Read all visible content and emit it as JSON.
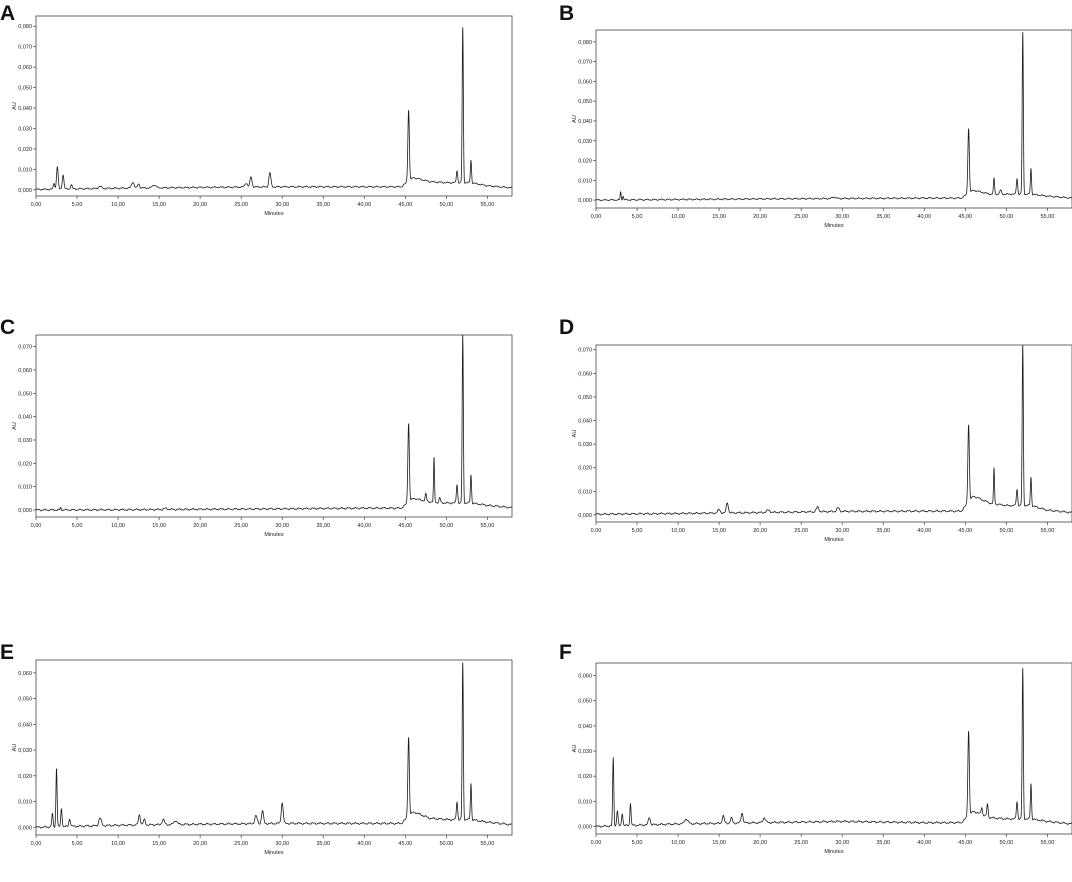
{
  "figure": {
    "colors": {
      "trace": "#1a1a1a",
      "axis": "#444444",
      "text": "#222222",
      "background": "#ffffff"
    }
  },
  "chart_data": [
    {
      "panel": "A",
      "type": "line",
      "xlabel": "Minutes",
      "ylabel": "AU",
      "xlim": [
        0,
        58
      ],
      "ylim": [
        -0.003,
        0.085
      ],
      "xticks": [
        "0,00",
        "5,00",
        "10,00",
        "15,00",
        "20,00",
        "25,00",
        "30,00",
        "35,00",
        "40,00",
        "45,00",
        "50,00",
        "55,00"
      ],
      "yticks": [
        "0,000",
        "0,010",
        "0,020",
        "0,030",
        "0,040",
        "0,050",
        "0,060",
        "0,070",
        "0,080"
      ],
      "grid": false,
      "baseline": [
        [
          0,
          0.0002
        ],
        [
          10,
          0.0008
        ],
        [
          20,
          0.0012
        ],
        [
          30,
          0.0015
        ],
        [
          40,
          0.0015
        ],
        [
          44.5,
          0.0015
        ],
        [
          46,
          0.006
        ],
        [
          48,
          0.004
        ],
        [
          50,
          0.0035
        ],
        [
          53,
          0.0035
        ],
        [
          55,
          0.002
        ],
        [
          58,
          0.001
        ]
      ],
      "peaks": [
        [
          2.6,
          0.011,
          0.1
        ],
        [
          3.3,
          0.007,
          0.1
        ],
        [
          2.2,
          0.003,
          0.08
        ],
        [
          4.3,
          0.002,
          0.1
        ],
        [
          7.8,
          0.001,
          0.2
        ],
        [
          11.8,
          0.003,
          0.15
        ],
        [
          12.5,
          0.002,
          0.12
        ],
        [
          14.4,
          0.0015,
          0.2
        ],
        [
          25.6,
          0.002,
          0.15
        ],
        [
          26.2,
          0.005,
          0.12
        ],
        [
          28.5,
          0.007,
          0.12
        ],
        [
          45.4,
          0.035,
          0.09
        ],
        [
          51.3,
          0.006,
          0.08
        ],
        [
          52.0,
          0.076,
          0.07
        ],
        [
          53.0,
          0.011,
          0.07
        ]
      ]
    },
    {
      "panel": "B",
      "type": "line",
      "xlabel": "Minutes",
      "ylabel": "AU",
      "xlim": [
        0,
        58
      ],
      "ylim": [
        -0.004,
        0.086
      ],
      "xticks": [
        "0,00",
        "5,00",
        "10,00",
        "15,00",
        "20,00",
        "25,00",
        "30,00",
        "35,00",
        "40,00",
        "45,00",
        "50,00",
        "55,00"
      ],
      "yticks": [
        "0,000",
        "0,010",
        "0,020",
        "0,030",
        "0,040",
        "0,050",
        "0,060",
        "0,070",
        "0,080"
      ],
      "grid": false,
      "baseline": [
        [
          0,
          0.0
        ],
        [
          10,
          0.0003
        ],
        [
          20,
          0.0006
        ],
        [
          30,
          0.0008
        ],
        [
          40,
          0.001
        ],
        [
          44.5,
          0.001
        ],
        [
          46,
          0.005
        ],
        [
          48,
          0.003
        ],
        [
          50,
          0.003
        ],
        [
          53,
          0.003
        ],
        [
          55,
          0.002
        ],
        [
          58,
          0.001
        ]
      ],
      "peaks": [
        [
          3.0,
          0.004,
          0.06
        ],
        [
          3.3,
          0.002,
          0.06
        ],
        [
          29.0,
          0.0008,
          0.2
        ],
        [
          45.4,
          0.033,
          0.09
        ],
        [
          48.5,
          0.008,
          0.07
        ],
        [
          49.3,
          0.002,
          0.1
        ],
        [
          51.3,
          0.008,
          0.08
        ],
        [
          52.0,
          0.082,
          0.07
        ],
        [
          53.0,
          0.013,
          0.07
        ]
      ]
    },
    {
      "panel": "C",
      "type": "line",
      "xlabel": "Minutes",
      "ylabel": "AU",
      "xlim": [
        0,
        58
      ],
      "ylim": [
        -0.003,
        0.075
      ],
      "xticks": [
        "0,00",
        "5,00",
        "10,00",
        "15,00",
        "20,00",
        "25,00",
        "30,00",
        "35,00",
        "40,00",
        "45,00",
        "50,00",
        "55,00"
      ],
      "yticks": [
        "0,000",
        "0,010",
        "0,020",
        "0,030",
        "0,040",
        "0,050",
        "0,060",
        "0,070"
      ],
      "grid": false,
      "baseline": [
        [
          0,
          0.0
        ],
        [
          10,
          0.0001
        ],
        [
          20,
          0.0003
        ],
        [
          30,
          0.0005
        ],
        [
          40,
          0.0008
        ],
        [
          44.5,
          0.0008
        ],
        [
          46,
          0.005
        ],
        [
          48,
          0.0035
        ],
        [
          50,
          0.003
        ],
        [
          53,
          0.003
        ],
        [
          55,
          0.002
        ],
        [
          58,
          0.001
        ]
      ],
      "peaks": [
        [
          3.0,
          0.001,
          0.06
        ],
        [
          15.8,
          0.0005,
          0.2
        ],
        [
          45.4,
          0.034,
          0.09
        ],
        [
          47.5,
          0.003,
          0.08
        ],
        [
          48.5,
          0.019,
          0.06
        ],
        [
          49.2,
          0.002,
          0.08
        ],
        [
          51.3,
          0.008,
          0.08
        ],
        [
          52.0,
          0.072,
          0.07
        ],
        [
          53.0,
          0.012,
          0.07
        ]
      ]
    },
    {
      "panel": "D",
      "type": "line",
      "xlabel": "Minutes",
      "ylabel": "AU",
      "xlim": [
        0,
        58
      ],
      "ylim": [
        -0.003,
        0.072
      ],
      "xticks": [
        "0,00",
        "5,00",
        "10,00",
        "15,00",
        "20,00",
        "25,00",
        "30,00",
        "35,00",
        "40,00",
        "45,00",
        "50,00",
        "55,00"
      ],
      "yticks": [
        "0,000",
        "0,010",
        "0,020",
        "0,030",
        "0,040",
        "0,050",
        "0,060",
        "0,070"
      ],
      "grid": false,
      "baseline": [
        [
          0,
          0.0003
        ],
        [
          10,
          0.0006
        ],
        [
          20,
          0.001
        ],
        [
          30,
          0.0015
        ],
        [
          40,
          0.0016
        ],
        [
          44.5,
          0.0016
        ],
        [
          46,
          0.008
        ],
        [
          48,
          0.005
        ],
        [
          50,
          0.004
        ],
        [
          53,
          0.004
        ],
        [
          55,
          0.002
        ],
        [
          58,
          0.001
        ]
      ],
      "peaks": [
        [
          15.0,
          0.0015,
          0.15
        ],
        [
          16.0,
          0.0045,
          0.12
        ],
        [
          21.0,
          0.001,
          0.2
        ],
        [
          27.0,
          0.002,
          0.15
        ],
        [
          29.5,
          0.0015,
          0.15
        ],
        [
          45.4,
          0.033,
          0.09
        ],
        [
          48.5,
          0.015,
          0.06
        ],
        [
          51.3,
          0.007,
          0.08
        ],
        [
          52.0,
          0.068,
          0.07
        ],
        [
          53.0,
          0.012,
          0.07
        ]
      ]
    },
    {
      "panel": "E",
      "type": "line",
      "xlabel": "Minutes",
      "ylabel": "AU",
      "xlim": [
        0,
        58
      ],
      "ylim": [
        -0.003,
        0.065
      ],
      "xticks": [
        "0,00",
        "5,00",
        "10,00",
        "15,00",
        "20,00",
        "25,00",
        "30,00",
        "35,00",
        "40,00",
        "45,00",
        "50,00",
        "55,00"
      ],
      "yticks": [
        "0,000",
        "0,010",
        "0,020",
        "0,030",
        "0,040",
        "0,050",
        "0,060"
      ],
      "grid": false,
      "baseline": [
        [
          0,
          0.0
        ],
        [
          10,
          0.0008
        ],
        [
          20,
          0.0012
        ],
        [
          30,
          0.0015
        ],
        [
          40,
          0.0015
        ],
        [
          44.5,
          0.0015
        ],
        [
          46,
          0.006
        ],
        [
          48,
          0.0035
        ],
        [
          50,
          0.003
        ],
        [
          53,
          0.003
        ],
        [
          55,
          0.002
        ],
        [
          58,
          0.001
        ]
      ],
      "peaks": [
        [
          2.0,
          0.005,
          0.08
        ],
        [
          2.5,
          0.023,
          0.07
        ],
        [
          3.1,
          0.007,
          0.08
        ],
        [
          4.1,
          0.003,
          0.1
        ],
        [
          7.8,
          0.003,
          0.15
        ],
        [
          12.6,
          0.004,
          0.12
        ],
        [
          13.2,
          0.002,
          0.12
        ],
        [
          15.5,
          0.002,
          0.15
        ],
        [
          17.0,
          0.0015,
          0.2
        ],
        [
          26.8,
          0.003,
          0.15
        ],
        [
          27.6,
          0.005,
          0.12
        ],
        [
          30.0,
          0.008,
          0.12
        ],
        [
          45.4,
          0.031,
          0.09
        ],
        [
          51.3,
          0.007,
          0.08
        ],
        [
          52.0,
          0.061,
          0.07
        ],
        [
          53.0,
          0.014,
          0.07
        ]
      ]
    },
    {
      "panel": "F",
      "type": "line",
      "xlabel": "Minutes",
      "ylabel": "AU",
      "xlim": [
        0,
        58
      ],
      "ylim": [
        -0.003,
        0.065
      ],
      "xticks": [
        "0,00",
        "5,00",
        "10,00",
        "15,00",
        "20,00",
        "25,00",
        "30,00",
        "35,00",
        "40,00",
        "45,00",
        "50,00",
        "55,00"
      ],
      "yticks": [
        "0,000",
        "0,010",
        "0,020",
        "0,030",
        "0,040",
        "0,050",
        "0,060"
      ],
      "grid": false,
      "baseline": [
        [
          0,
          0.0
        ],
        [
          10,
          0.001
        ],
        [
          20,
          0.0015
        ],
        [
          30,
          0.002
        ],
        [
          40,
          0.0015
        ],
        [
          44.5,
          0.0015
        ],
        [
          46,
          0.006
        ],
        [
          48,
          0.0035
        ],
        [
          50,
          0.003
        ],
        [
          53,
          0.003
        ],
        [
          55,
          0.002
        ],
        [
          58,
          0.001
        ]
      ],
      "peaks": [
        [
          2.1,
          0.027,
          0.07
        ],
        [
          2.6,
          0.006,
          0.08
        ],
        [
          3.2,
          0.005,
          0.08
        ],
        [
          4.2,
          0.009,
          0.07
        ],
        [
          6.5,
          0.003,
          0.12
        ],
        [
          11.0,
          0.002,
          0.2
        ],
        [
          15.5,
          0.003,
          0.12
        ],
        [
          16.5,
          0.002,
          0.12
        ],
        [
          17.8,
          0.004,
          0.12
        ],
        [
          20.5,
          0.002,
          0.15
        ],
        [
          45.4,
          0.034,
          0.09
        ],
        [
          47.0,
          0.003,
          0.08
        ],
        [
          47.7,
          0.005,
          0.08
        ],
        [
          51.3,
          0.007,
          0.08
        ],
        [
          52.0,
          0.06,
          0.07
        ],
        [
          53.0,
          0.014,
          0.07
        ]
      ]
    }
  ]
}
